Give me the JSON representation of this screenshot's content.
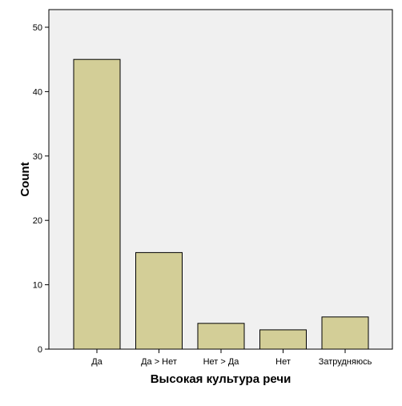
{
  "chart_data": {
    "type": "bar",
    "categories": [
      "Да",
      "Да > Нет",
      "Нет > Да",
      "Нет",
      "Затрудняюсь"
    ],
    "values": [
      45,
      15,
      4,
      3,
      5
    ],
    "xlabel": "Высокая культура речи",
    "ylabel": "Count",
    "ylim": [
      0,
      50
    ],
    "yticks": [
      0,
      10,
      20,
      30,
      40,
      50
    ],
    "grid": false,
    "legend": "none"
  },
  "colors": {
    "plot_background": "#f0f0f0",
    "bar_fill": "#d3ce97",
    "bar_stroke": "#000000",
    "axis": "#000000",
    "page_background": "#ffffff"
  }
}
